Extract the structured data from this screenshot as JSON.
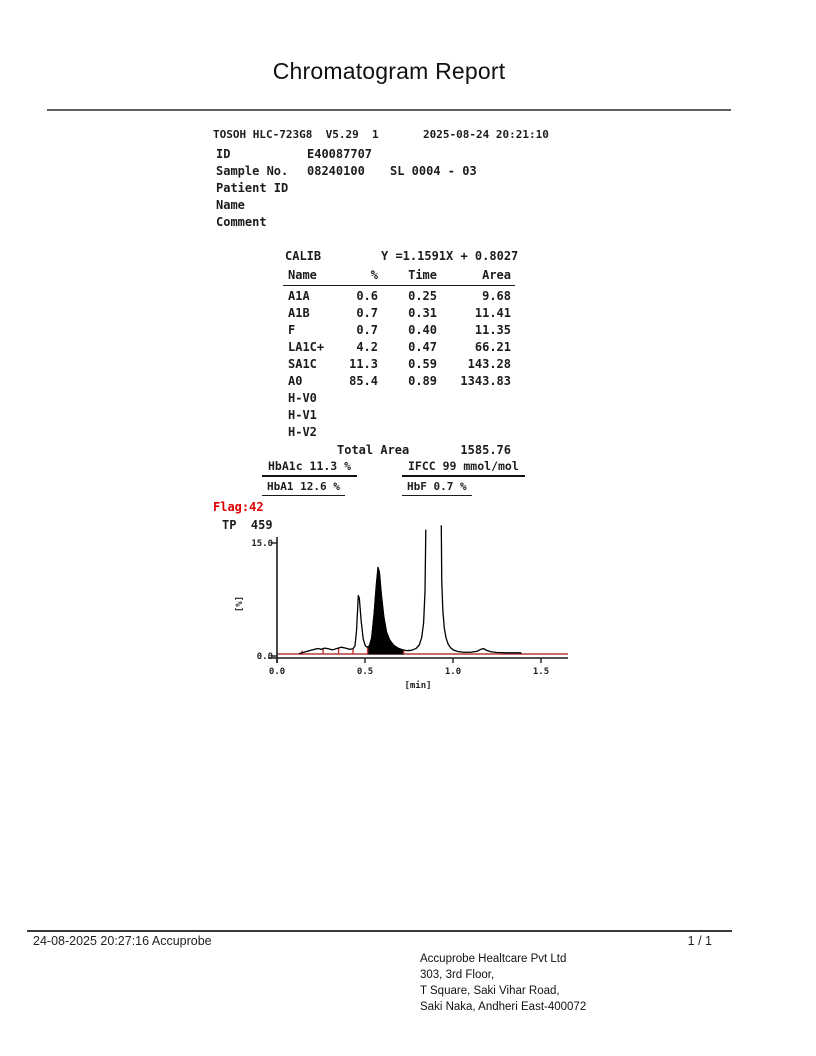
{
  "title": "Chromatogram Report",
  "report": {
    "device": "TOSOH HLC-723G8  V5.29  1",
    "datetime": "2025-08-24 20:21:10",
    "id_label": "ID",
    "id_value": "E40087707",
    "sample_label": "Sample No.",
    "sample_value": "08240100",
    "sample_sl": "SL 0004 - 03",
    "patient_id_label": "Patient ID",
    "name_label": "Name",
    "comment_label": "Comment"
  },
  "calib": {
    "label": "CALIB",
    "equation": "Y =1.1591X + 0.8027",
    "headers": {
      "name": "Name",
      "pct": "%",
      "time": "Time",
      "area": "Area"
    },
    "rows": [
      {
        "name": "A1A",
        "pct": "0.6",
        "time": "0.25",
        "area": "9.68"
      },
      {
        "name": "A1B",
        "pct": "0.7",
        "time": "0.31",
        "area": "11.41"
      },
      {
        "name": "F",
        "pct": "0.7",
        "time": "0.40",
        "area": "11.35"
      },
      {
        "name": "LA1C+",
        "pct": "4.2",
        "time": "0.47",
        "area": "66.21"
      },
      {
        "name": "SA1C",
        "pct": "11.3",
        "time": "0.59",
        "area": "143.28"
      },
      {
        "name": "A0",
        "pct": "85.4",
        "time": "0.89",
        "area": "1343.83"
      },
      {
        "name": "H-V0",
        "pct": "",
        "time": "",
        "area": ""
      },
      {
        "name": "H-V1",
        "pct": "",
        "time": "",
        "area": ""
      },
      {
        "name": "H-V2",
        "pct": "",
        "time": "",
        "area": ""
      }
    ],
    "total_label": "Total Area",
    "total_value": "1585.76"
  },
  "results": {
    "hba1c": "HbA1c 11.3 %",
    "ifcc": "IFCC 99 mmol/mol",
    "hba1": "HbA1 12.6 %",
    "hbf": "HbF 0.7 %"
  },
  "flag": "Flag:42",
  "tp": "TP  459",
  "chart_data": {
    "type": "line",
    "title": "",
    "xlabel": "[min]",
    "ylabel": "[%]",
    "xlim": [
      0,
      1.65
    ],
    "ylim": [
      0,
      15
    ],
    "xticks": [
      {
        "t": 0.0,
        "label": "0.0"
      },
      {
        "t": 0.5,
        "label": "0.5"
      },
      {
        "t": 1.0,
        "label": "1.0"
      },
      {
        "t": 1.5,
        "label": "1.5"
      }
    ],
    "ytick_top_label": "15.0",
    "ytick_bottom_label": "0.0",
    "grid": false,
    "trace_color": "#000000",
    "baseline_color": "#b43b3b",
    "peak_tick_color": "#c03030",
    "trace_segments": [
      [
        [
          0.125,
          0.05
        ],
        [
          0.155,
          0.25
        ],
        [
          0.185,
          0.45
        ],
        [
          0.215,
          0.65
        ],
        [
          0.235,
          0.75
        ],
        [
          0.25,
          0.62
        ],
        [
          0.27,
          0.8
        ],
        [
          0.29,
          0.72
        ],
        [
          0.315,
          0.55
        ],
        [
          0.34,
          0.75
        ],
        [
          0.365,
          0.92
        ],
        [
          0.39,
          0.8
        ],
        [
          0.415,
          0.62
        ],
        [
          0.432,
          0.72
        ],
        [
          0.443,
          1.1
        ],
        [
          0.452,
          3.2
        ],
        [
          0.462,
          7.9
        ],
        [
          0.468,
          7.5
        ],
        [
          0.478,
          4.5
        ],
        [
          0.49,
          2.0
        ],
        [
          0.502,
          1.1
        ],
        [
          0.513,
          0.92
        ],
        [
          0.525,
          1.1
        ],
        [
          0.538,
          2.2
        ],
        [
          0.552,
          5.5
        ],
        [
          0.565,
          9.5
        ],
        [
          0.574,
          11.7
        ],
        [
          0.582,
          11.0
        ],
        [
          0.593,
          8.0
        ],
        [
          0.607,
          5.0
        ],
        [
          0.622,
          3.0
        ],
        [
          0.64,
          1.9
        ],
        [
          0.662,
          1.2
        ],
        [
          0.687,
          0.8
        ],
        [
          0.712,
          0.58
        ],
        [
          0.738,
          0.45
        ],
        [
          0.765,
          0.5
        ],
        [
          0.79,
          0.75
        ],
        [
          0.808,
          1.2
        ],
        [
          0.822,
          2.2
        ],
        [
          0.833,
          4.2
        ],
        [
          0.841,
          8.5
        ],
        [
          0.8455,
          16.8
        ]
      ],
      [
        [
          0.9335,
          17.4
        ],
        [
          0.936,
          10.0
        ],
        [
          0.942,
          6.0
        ],
        [
          0.95,
          3.6
        ],
        [
          0.96,
          2.2
        ],
        [
          0.973,
          1.3
        ],
        [
          0.988,
          0.8
        ],
        [
          1.005,
          0.5
        ],
        [
          1.03,
          0.32
        ],
        [
          1.06,
          0.24
        ],
        [
          1.1,
          0.24
        ],
        [
          1.135,
          0.35
        ],
        [
          1.16,
          0.65
        ],
        [
          1.175,
          0.72
        ],
        [
          1.19,
          0.5
        ],
        [
          1.215,
          0.3
        ],
        [
          1.25,
          0.2
        ],
        [
          1.3,
          0.16
        ],
        [
          1.385,
          0.16
        ],
        [
          1.387,
          0.02
        ]
      ]
    ],
    "filled_peak": [
      [
        0.515,
        0
      ],
      [
        0.518,
        0.92
      ],
      [
        0.525,
        1.1
      ],
      [
        0.538,
        2.2
      ],
      [
        0.552,
        5.5
      ],
      [
        0.565,
        9.5
      ],
      [
        0.574,
        11.7
      ],
      [
        0.582,
        11.0
      ],
      [
        0.593,
        8.0
      ],
      [
        0.607,
        5.0
      ],
      [
        0.622,
        3.0
      ],
      [
        0.64,
        1.9
      ],
      [
        0.662,
        1.2
      ],
      [
        0.687,
        0.8
      ],
      [
        0.712,
        0.58
      ],
      [
        0.72,
        0.52
      ],
      [
        0.72,
        0
      ]
    ],
    "boundary_ticks": [
      [
        0.143,
        0.45
      ],
      [
        0.262,
        0.8
      ],
      [
        0.35,
        0.85
      ],
      [
        0.432,
        0.75
      ],
      [
        0.515,
        0.95
      ],
      [
        0.72,
        0.55
      ]
    ],
    "annotations": {
      "peaks": [
        {
          "name": "A1A",
          "time": 0.25,
          "pct": 0.6
        },
        {
          "name": "A1B",
          "time": 0.31,
          "pct": 0.7
        },
        {
          "name": "F",
          "time": 0.4,
          "pct": 0.7
        },
        {
          "name": "LA1C+",
          "time": 0.47,
          "pct": 4.2
        },
        {
          "name": "SA1C",
          "time": 0.59,
          "pct": 11.3,
          "filled": true
        },
        {
          "name": "A0",
          "time": 0.89,
          "pct": 85.4,
          "clipped": true
        }
      ]
    }
  },
  "footer": {
    "left": "24-08-2025 20:27:16  Accuprobe",
    "page": "1 / 1",
    "address": [
      "Accuprobe Healtcare Pvt Ltd",
      "303, 3rd Floor,",
      "T Square, Saki Vihar Road,",
      "Saki Naka, Andheri East-400072"
    ]
  },
  "colors": {
    "flag_red": "#e00000",
    "chart_red": "#b43b3b",
    "accent_black": "#1c1c1c"
  }
}
